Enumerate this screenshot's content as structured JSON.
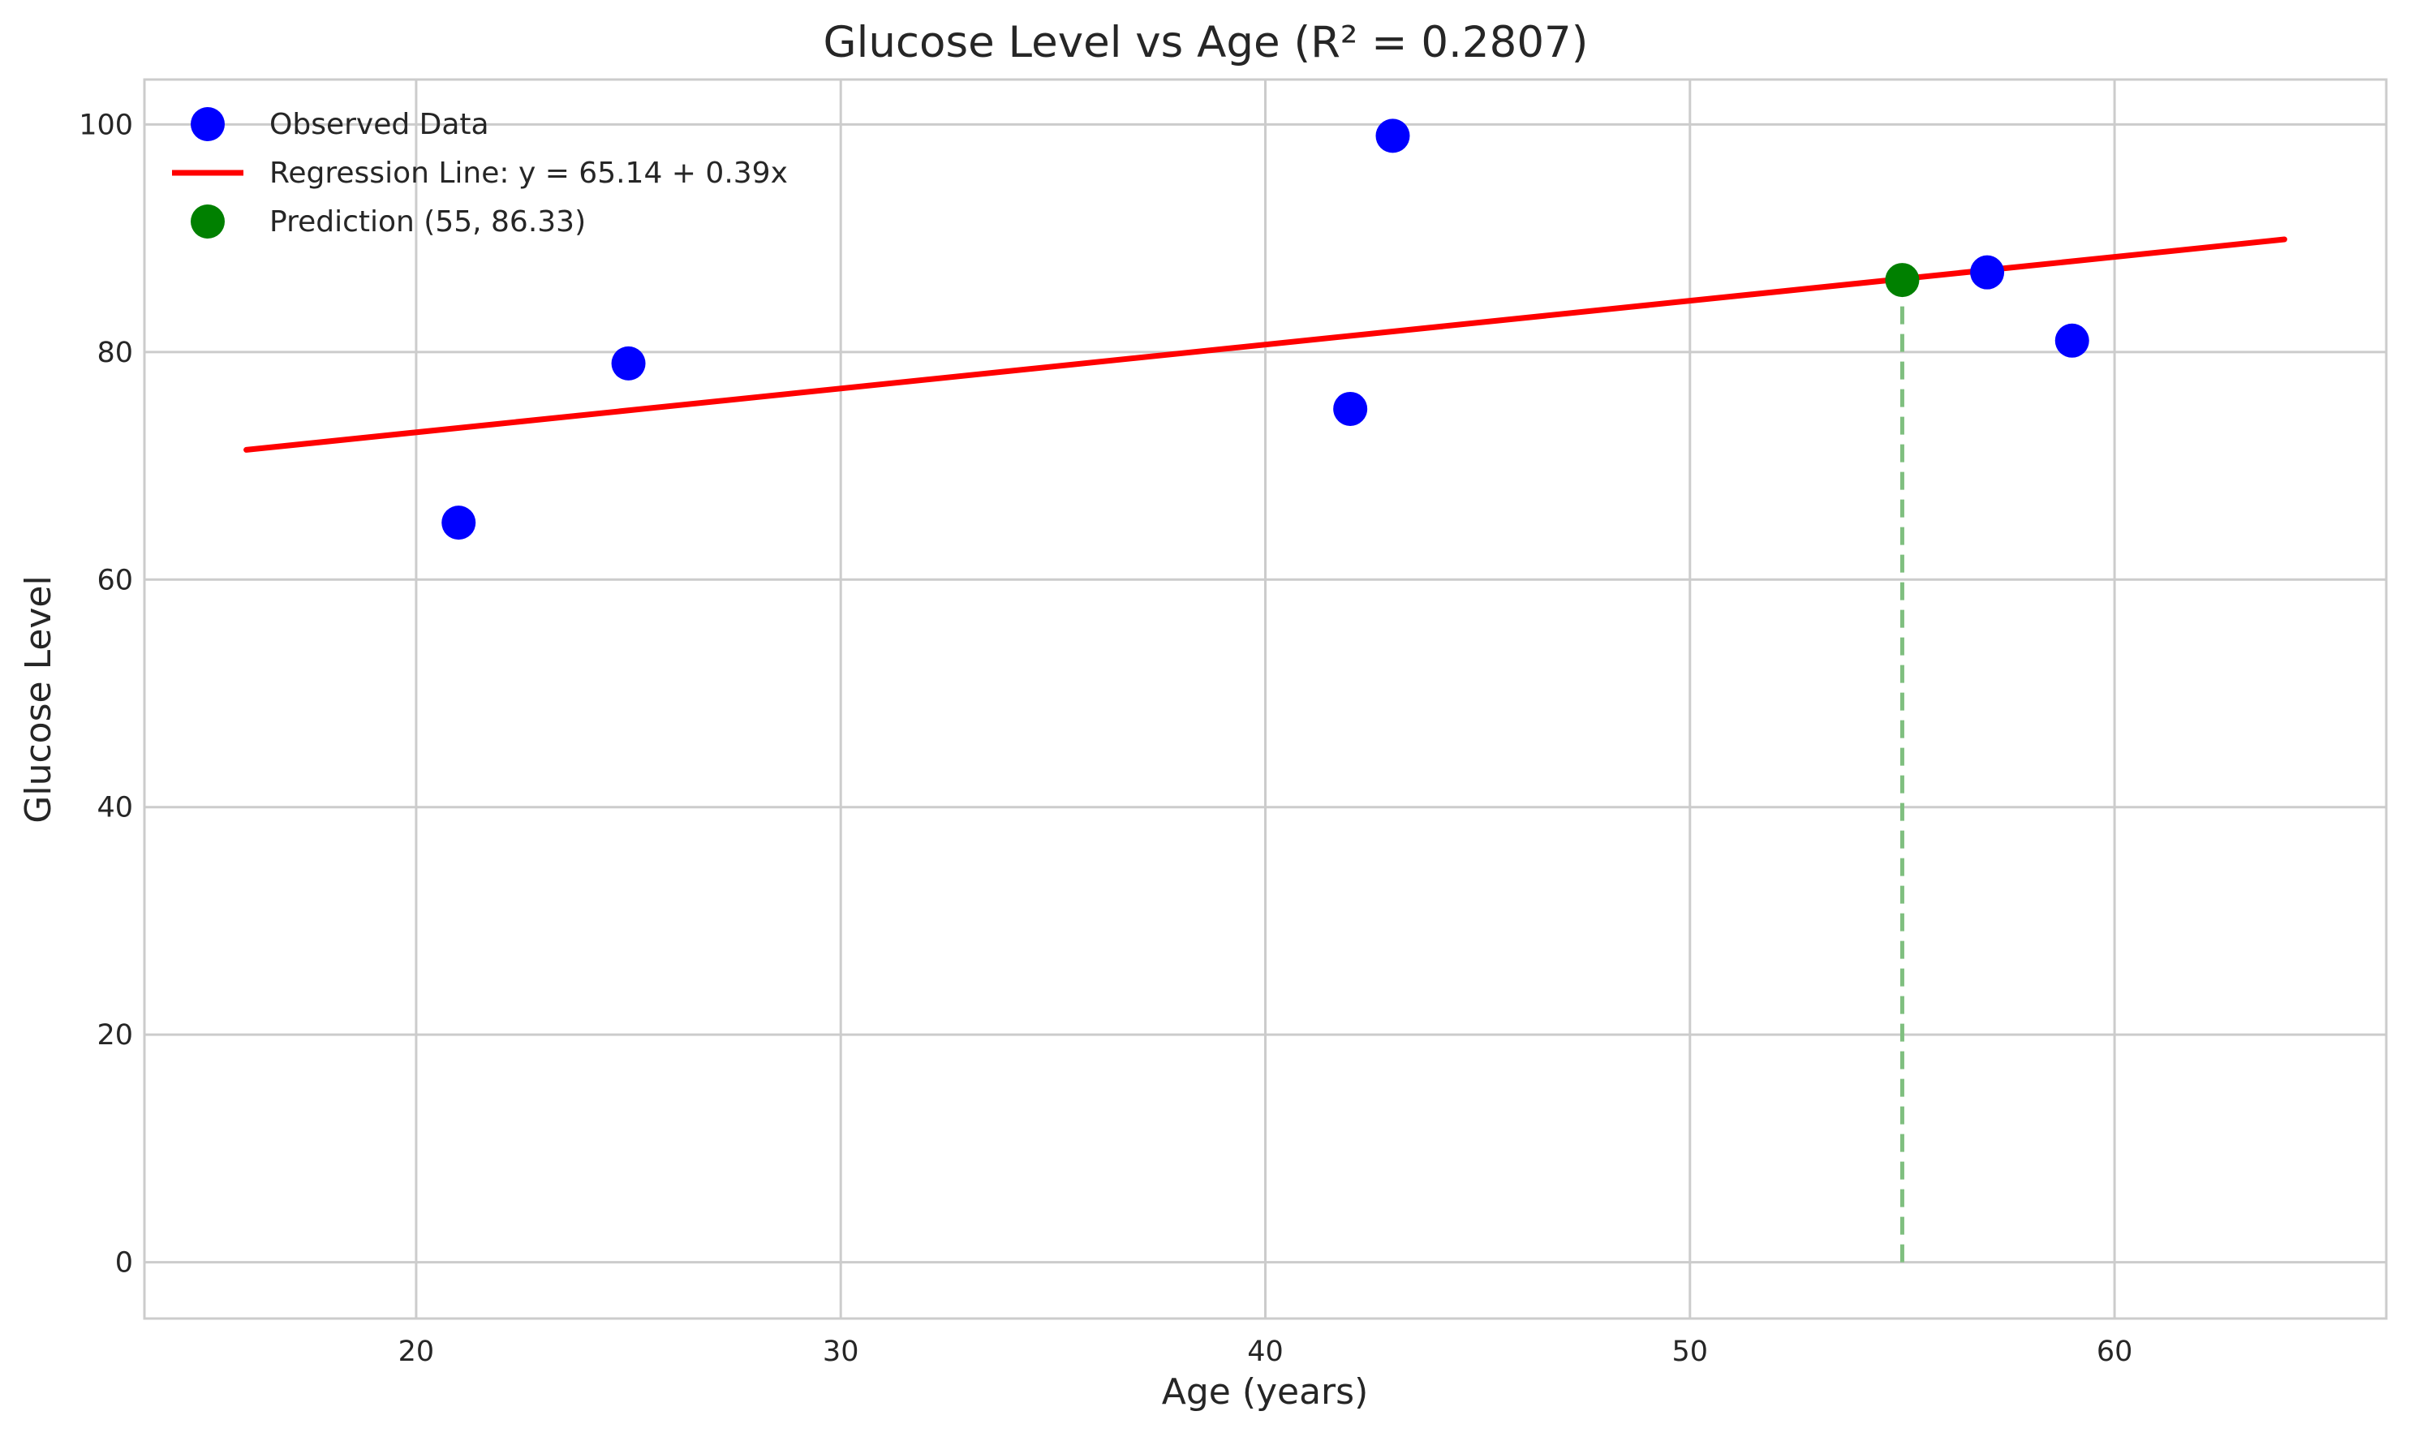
{
  "chart_data": {
    "type": "scatter",
    "title": "Glucose Level vs Age (R² = 0.2807)",
    "xlabel": "Age (years)",
    "ylabel": "Glucose Level",
    "xlim": [
      13.6,
      66.4
    ],
    "ylim": [
      -4.95,
      103.95
    ],
    "xticks": [
      20,
      30,
      40,
      50,
      60
    ],
    "yticks": [
      0,
      20,
      40,
      60,
      80,
      100
    ],
    "grid": true,
    "legend_position": "top-left",
    "series": [
      {
        "name": "Observed Data",
        "kind": "scatter",
        "color": "#0000ff",
        "x": [
          21,
          25,
          42,
          43,
          57,
          59
        ],
        "y": [
          65,
          79,
          75,
          99,
          87,
          81
        ]
      },
      {
        "name": "Regression Line: y = 65.14 + 0.39x",
        "kind": "line",
        "color": "#ff0000",
        "x": [
          16,
          64
        ],
        "y": [
          71.4,
          89.9
        ]
      },
      {
        "name": "Prediction (55, 86.33)",
        "kind": "scatter",
        "color": "#008000",
        "x": [
          55
        ],
        "y": [
          86.33
        ]
      }
    ],
    "annotations": [
      {
        "kind": "vertical-dashed-line",
        "x": 55,
        "y_from": 0,
        "y_to": 86.33,
        "color": "#7fbf7f"
      }
    ]
  }
}
